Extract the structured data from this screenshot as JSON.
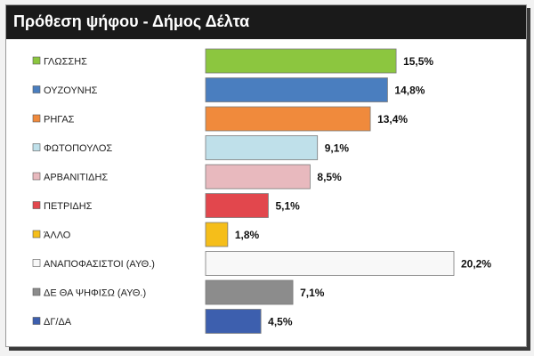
{
  "header": {
    "title": "Πρόθεση ψήφου - Δήμος Δέλτα"
  },
  "chart_data": {
    "type": "bar",
    "orientation": "horizontal",
    "title": "Πρόθεση ψήφου - Δήμος Δέλτα",
    "categories": [
      "ΓΛΩΣΣΗΣ",
      "ΟΥΖΟΥΝΗΣ",
      "ΡΗΓΑΣ",
      "ΦΩΤΟΠΟΥΛΟΣ",
      "ΑΡΒΑΝΙΤΙΔΗΣ",
      "ΠΕΤΡΙΔΗΣ",
      "ΆΛΛΟ",
      "ΑΝΑΠΟΦΑΣΙΣΤΟΙ (ΑΥΘ.)",
      "ΔΕ ΘΑ ΨΗΦΙΣΩ (ΑΥΘ.)",
      "ΔΓ/ΔΑ"
    ],
    "values": [
      15.5,
      14.8,
      13.4,
      9.1,
      8.5,
      5.1,
      1.8,
      20.2,
      7.1,
      4.5
    ],
    "value_labels": [
      "15,5%",
      "14,8%",
      "13,4%",
      "9,1%",
      "8,5%",
      "5,1%",
      "1,8%",
      "20,2%",
      "7,1%",
      "4,5%"
    ],
    "colors": [
      "#8cc63f",
      "#4a7ebf",
      "#f08a3c",
      "#bfe0ea",
      "#e8b9be",
      "#e2474d",
      "#f5be1a",
      "#f8f8f8",
      "#8c8c8c",
      "#3d5fae"
    ],
    "xlim": [
      0,
      20.2
    ],
    "unit": "%",
    "legend": "none",
    "grid": false
  }
}
